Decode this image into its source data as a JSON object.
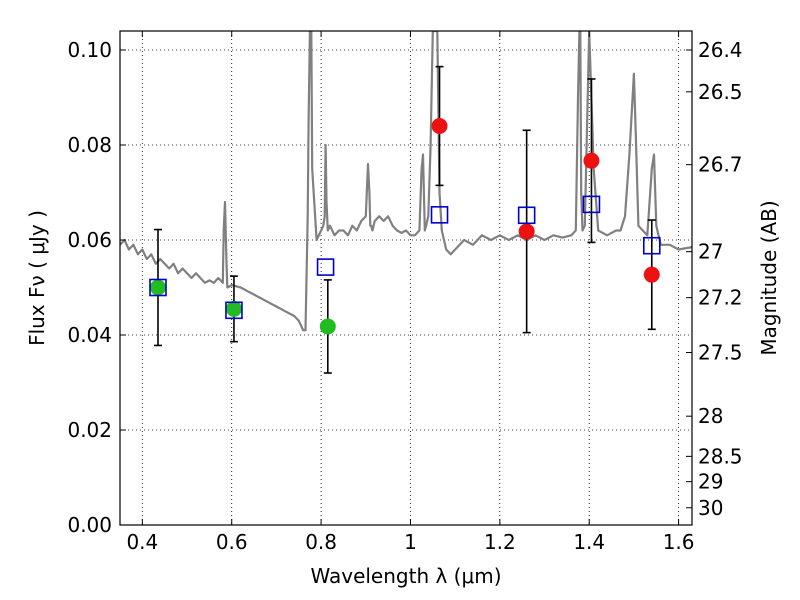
{
  "chart_data": {
    "type": "scatter",
    "xlabel": "Wavelength  λ (μm)",
    "ylabel": "Flux  Fν  ( μJy )",
    "y2label": "Magnitude (AB)",
    "xlim": [
      0.35,
      1.63
    ],
    "ylim": [
      0.0,
      0.104
    ],
    "grid": true,
    "x_ticks": [
      {
        "value": 0.4,
        "label": "0.4"
      },
      {
        "value": 0.6,
        "label": "0.6"
      },
      {
        "value": 0.8,
        "label": "0.8"
      },
      {
        "value": 1.0,
        "label": "1"
      },
      {
        "value": 1.2,
        "label": "1.2"
      },
      {
        "value": 1.4,
        "label": "1.4"
      },
      {
        "value": 1.6,
        "label": "1.6"
      }
    ],
    "y_ticks": [
      {
        "value": 0.0,
        "label": "0.00"
      },
      {
        "value": 0.02,
        "label": "0.02"
      },
      {
        "value": 0.04,
        "label": "0.04"
      },
      {
        "value": 0.06,
        "label": "0.06"
      },
      {
        "value": 0.08,
        "label": "0.08"
      },
      {
        "value": 0.1,
        "label": "0.10"
      }
    ],
    "magnitude_ticks": [
      {
        "mag": 26.4,
        "label": "26.4"
      },
      {
        "mag": 26.5,
        "label": "26.5"
      },
      {
        "mag": 26.7,
        "label": "26.7"
      },
      {
        "mag": 27.0,
        "label": "27"
      },
      {
        "mag": 27.2,
        "label": "27.2"
      },
      {
        "mag": 27.5,
        "label": "27.5"
      },
      {
        "mag": 28.0,
        "label": "28"
      },
      {
        "mag": 28.5,
        "label": "28.5"
      },
      {
        "mag": 29.0,
        "label": "29"
      },
      {
        "mag": 30.0,
        "label": "30"
      }
    ],
    "series": [
      {
        "kind": "line",
        "color": "#808080",
        "x": [
          0.35,
          0.36,
          0.37,
          0.38,
          0.39,
          0.4,
          0.41,
          0.42,
          0.43,
          0.44,
          0.45,
          0.46,
          0.47,
          0.48,
          0.49,
          0.5,
          0.51,
          0.52,
          0.53,
          0.54,
          0.55,
          0.56,
          0.57,
          0.58,
          0.582,
          0.585,
          0.588,
          0.59,
          0.6,
          0.62,
          0.64,
          0.66,
          0.68,
          0.7,
          0.72,
          0.74,
          0.75,
          0.76,
          0.765,
          0.77,
          0.772,
          0.775,
          0.778,
          0.78,
          0.79,
          0.8,
          0.805,
          0.808,
          0.81,
          0.812,
          0.815,
          0.82,
          0.83,
          0.84,
          0.85,
          0.86,
          0.87,
          0.88,
          0.89,
          0.9,
          0.905,
          0.908,
          0.91,
          0.912,
          0.915,
          0.92,
          0.93,
          0.94,
          0.95,
          0.96,
          0.97,
          0.98,
          0.99,
          1.0,
          1.01,
          1.02,
          1.025,
          1.028,
          1.03,
          1.032,
          1.035,
          1.04,
          1.045,
          1.05,
          1.06,
          1.065,
          1.07,
          1.08,
          1.09,
          1.1,
          1.12,
          1.14,
          1.16,
          1.18,
          1.2,
          1.22,
          1.24,
          1.26,
          1.28,
          1.3,
          1.32,
          1.34,
          1.36,
          1.37,
          1.375,
          1.378,
          1.38,
          1.382,
          1.385,
          1.39,
          1.4,
          1.41,
          1.42,
          1.44,
          1.46,
          1.47,
          1.48,
          1.49,
          1.5,
          1.505,
          1.51,
          1.52,
          1.53,
          1.54,
          1.545,
          1.55,
          1.56,
          1.58,
          1.6,
          1.63
        ],
        "y": [
          0.059,
          0.06,
          0.058,
          0.059,
          0.057,
          0.058,
          0.056,
          0.057,
          0.055,
          0.056,
          0.055,
          0.054,
          0.055,
          0.053,
          0.054,
          0.053,
          0.052,
          0.053,
          0.052,
          0.051,
          0.0515,
          0.051,
          0.052,
          0.051,
          0.062,
          0.068,
          0.056,
          0.05,
          0.0505,
          0.05,
          0.049,
          0.048,
          0.047,
          0.046,
          0.045,
          0.044,
          0.043,
          0.041,
          0.041,
          0.065,
          0.085,
          0.104,
          0.104,
          0.075,
          0.06,
          0.062,
          0.063,
          0.065,
          0.08,
          0.068,
          0.062,
          0.063,
          0.061,
          0.062,
          0.062,
          0.061,
          0.063,
          0.062,
          0.064,
          0.065,
          0.076,
          0.07,
          0.063,
          0.063,
          0.062,
          0.064,
          0.065,
          0.064,
          0.065,
          0.063,
          0.062,
          0.0615,
          0.062,
          0.061,
          0.061,
          0.062,
          0.075,
          0.078,
          0.07,
          0.062,
          0.063,
          0.065,
          0.08,
          0.104,
          0.104,
          0.07,
          0.062,
          0.058,
          0.057,
          0.058,
          0.06,
          0.059,
          0.061,
          0.06,
          0.061,
          0.06,
          0.061,
          0.06,
          0.061,
          0.06,
          0.061,
          0.0605,
          0.061,
          0.062,
          0.09,
          0.104,
          0.104,
          0.07,
          0.062,
          0.063,
          0.104,
          0.075,
          0.062,
          0.061,
          0.062,
          0.062,
          0.065,
          0.078,
          0.095,
          0.08,
          0.063,
          0.062,
          0.061,
          0.075,
          0.078,
          0.063,
          0.059,
          0.059,
          0.058,
          0.0585
        ],
        "name": ""
      },
      {
        "kind": "points",
        "marker": "circle",
        "color": "#22bb22",
        "x": [
          0.435,
          0.605,
          0.815
        ],
        "y": [
          0.05,
          0.0455,
          0.0418
        ],
        "yerr": [
          0.0122,
          0.0069,
          0.0098
        ],
        "name": ""
      },
      {
        "kind": "points",
        "marker": "circle",
        "color": "#ee1111",
        "x": [
          1.065,
          1.26,
          1.405,
          1.54
        ],
        "y": [
          0.084,
          0.0618,
          0.0767,
          0.0527
        ],
        "yerr": [
          0.0125,
          0.0213,
          0.0172,
          0.0115
        ],
        "name": ""
      },
      {
        "kind": "points",
        "marker": "square",
        "color": "#0000cc",
        "x": [
          0.435,
          0.605,
          0.81,
          1.065,
          1.26,
          1.405,
          1.54
        ],
        "y": [
          0.05,
          0.0452,
          0.0543,
          0.0653,
          0.0652,
          0.0675,
          0.0588
        ],
        "name": ""
      }
    ]
  }
}
